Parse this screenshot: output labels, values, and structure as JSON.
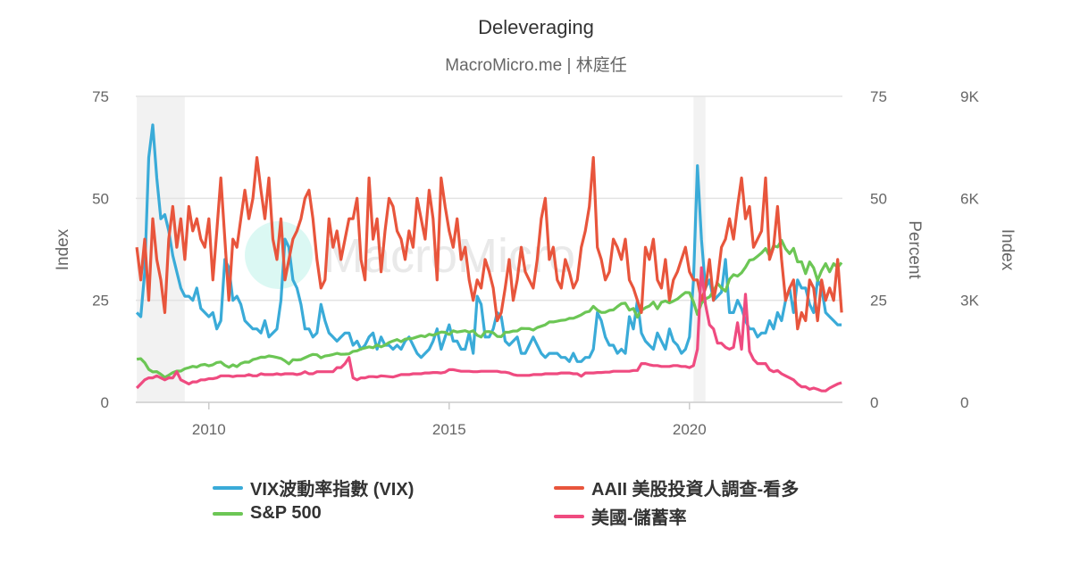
{
  "title": "Deleveraging",
  "subtitle": "MacroMicro.me | 林庭任",
  "watermark": "MacroMicro",
  "chart_data": {
    "type": "line",
    "x_ticks": [
      "2010",
      "2015",
      "2020"
    ],
    "x_range": [
      "2008-07",
      "2023-03"
    ],
    "recession_shading": [
      [
        "2008-07",
        "2009-06"
      ],
      [
        "2020-02",
        "2020-04"
      ]
    ],
    "grid": true,
    "legend": "bottom",
    "axes": {
      "left": {
        "title": "Index",
        "range": [
          0,
          75
        ],
        "ticks": [
          "0",
          "25",
          "50",
          "75"
        ]
      },
      "middle": {
        "title": "Percent",
        "range": [
          0,
          75
        ],
        "ticks": [
          "0",
          "25",
          "50",
          "75"
        ]
      },
      "right": {
        "title": "Index",
        "range": [
          0,
          9000
        ],
        "ticks": [
          "0",
          "3K",
          "6K",
          "9K"
        ]
      }
    },
    "start": "2008-07",
    "frequency": "monthly",
    "series": [
      {
        "name": "VIX波動率指數 (VIX)",
        "axis": "left",
        "color": "#3aabd8",
        "values": [
          22,
          21,
          32,
          60,
          68,
          55,
          45,
          46,
          42,
          36,
          32,
          28,
          26,
          26,
          25,
          28,
          23,
          22,
          21,
          22,
          18,
          20,
          35,
          33,
          25,
          26,
          24,
          20,
          19,
          18,
          18,
          17,
          20,
          16,
          17,
          18,
          25,
          40,
          38,
          30,
          28,
          24,
          18,
          18,
          16,
          17,
          24,
          20,
          17,
          16,
          15,
          16,
          17,
          17,
          14,
          15,
          13,
          14,
          16,
          17,
          13,
          16,
          14,
          14,
          13,
          14,
          13,
          15,
          16,
          14,
          12,
          11,
          12,
          13,
          15,
          18,
          13,
          16,
          19,
          15,
          15,
          13,
          13,
          17,
          12,
          26,
          24,
          16,
          16,
          18,
          22,
          21,
          15,
          14,
          15,
          16,
          12,
          12,
          14,
          16,
          14,
          12,
          11,
          12,
          12,
          12,
          11,
          11,
          10,
          12,
          10,
          10,
          11,
          11,
          13,
          22,
          20,
          16,
          14,
          14,
          12,
          13,
          12,
          21,
          18,
          25,
          17,
          15,
          14,
          13,
          17,
          15,
          13,
          18,
          15,
          14,
          12,
          13,
          16,
          30,
          58,
          40,
          28,
          30,
          25,
          26,
          27,
          35,
          22,
          22,
          25,
          23,
          20,
          18,
          18,
          16,
          17,
          17,
          20,
          18,
          22,
          20,
          25,
          28,
          22,
          30,
          28,
          28,
          24,
          22,
          30,
          28,
          22,
          21,
          20,
          19,
          19
        ]
      },
      {
        "name": "AAII 美股投資人調查-看多",
        "axis": "middle",
        "color": "#e8553c",
        "values": [
          38,
          30,
          40,
          25,
          45,
          35,
          30,
          22,
          40,
          48,
          38,
          45,
          35,
          48,
          42,
          45,
          40,
          38,
          45,
          30,
          42,
          55,
          40,
          25,
          40,
          38,
          45,
          52,
          45,
          50,
          60,
          52,
          45,
          55,
          40,
          35,
          45,
          30,
          35,
          40,
          42,
          45,
          50,
          52,
          45,
          35,
          28,
          30,
          45,
          38,
          42,
          35,
          40,
          45,
          45,
          50,
          35,
          30,
          55,
          40,
          45,
          32,
          42,
          50,
          48,
          42,
          40,
          35,
          42,
          38,
          50,
          45,
          40,
          52,
          45,
          30,
          55,
          48,
          42,
          38,
          45,
          35,
          38,
          30,
          25,
          30,
          28,
          35,
          32,
          28,
          20,
          22,
          28,
          35,
          25,
          30,
          38,
          32,
          30,
          28,
          35,
          45,
          50,
          35,
          38,
          30,
          28,
          35,
          32,
          28,
          30,
          38,
          42,
          48,
          60,
          38,
          35,
          30,
          32,
          40,
          38,
          35,
          40,
          30,
          28,
          25,
          22,
          38,
          35,
          40,
          30,
          28,
          35,
          25,
          30,
          32,
          35,
          38,
          32,
          30,
          30,
          25,
          28,
          35,
          25,
          30,
          38,
          40,
          45,
          40,
          48,
          55,
          45,
          48,
          38,
          40,
          42,
          55,
          35,
          38,
          48,
          35,
          25,
          28,
          30,
          18,
          22,
          20,
          30,
          28,
          20,
          30,
          25,
          28,
          25,
          35,
          22
        ]
      },
      {
        "name": "S&P 500",
        "axis": "right",
        "color": "#6cc655",
        "values": [
          1267,
          1283,
          1165,
          968,
          896,
          903,
          826,
          735,
          798,
          873,
          919,
          919,
          987,
          1021,
          1057,
          1036,
          1096,
          1115,
          1074,
          1104,
          1169,
          1187,
          1089,
          1031,
          1102,
          1049,
          1141,
          1183,
          1181,
          1258,
          1286,
          1327,
          1326,
          1364,
          1345,
          1321,
          1292,
          1219,
          1131,
          1253,
          1247,
          1258,
          1312,
          1366,
          1408,
          1398,
          1310,
          1362,
          1379,
          1407,
          1441,
          1412,
          1416,
          1426,
          1498,
          1515,
          1569,
          1598,
          1631,
          1606,
          1686,
          1633,
          1682,
          1757,
          1806,
          1848,
          1783,
          1859,
          1872,
          1884,
          1924,
          1960,
          1931,
          2003,
          1972,
          2018,
          2068,
          2059,
          1995,
          2105,
          2068,
          2086,
          2107,
          2063,
          2104,
          1972,
          1920,
          2079,
          2080,
          2044,
          1940,
          1932,
          2060,
          2065,
          2097,
          2099,
          2174,
          2171,
          2168,
          2126,
          2199,
          2239,
          2279,
          2364,
          2363,
          2384,
          2412,
          2423,
          2470,
          2472,
          2519,
          2575,
          2648,
          2674,
          2824,
          2714,
          2641,
          2648,
          2705,
          2718,
          2816,
          2902,
          2914,
          2712,
          2760,
          2507,
          2704,
          2784,
          2834,
          2946,
          2752,
          2942,
          2980,
          2926,
          2977,
          3038,
          3141,
          3231,
          3226,
          2954,
          2585,
          2912,
          3044,
          3100,
          3271,
          3500,
          3363,
          3270,
          3622,
          3756,
          3714,
          3811,
          3973,
          4181,
          4204,
          4298,
          4395,
          4523,
          4308,
          4605,
          4567,
          4766,
          4516,
          4374,
          4530,
          4132,
          4132,
          3785,
          4130,
          3955,
          3586,
          3872,
          4080,
          3840,
          4077,
          3970,
          4109
        ]
      },
      {
        "name": "美國-儲蓄率",
        "axis": "middle",
        "color": "#ef4b80",
        "values": [
          3.5,
          4.5,
          5.5,
          6,
          6,
          6.5,
          6,
          5.5,
          6,
          6,
          7.5,
          5.5,
          5,
          4.5,
          5,
          5,
          5.5,
          5.5,
          5.8,
          5.8,
          6,
          6.5,
          6.5,
          6.5,
          6.3,
          6.5,
          6.5,
          6.5,
          6.8,
          6.5,
          6.5,
          7,
          6.8,
          6.8,
          6.8,
          7,
          6.8,
          7,
          7,
          7,
          6.8,
          7,
          7.5,
          7,
          7,
          7.5,
          7.5,
          7.5,
          7.5,
          7.5,
          8.5,
          8.5,
          9.5,
          11,
          6,
          5.5,
          6,
          6,
          6.3,
          6.3,
          6.2,
          6.5,
          6.4,
          6.3,
          6.2,
          6.5,
          6.8,
          6.8,
          6.8,
          7,
          7,
          7,
          7.2,
          7.2,
          7.3,
          7.3,
          7.2,
          7.4,
          8,
          8,
          7.8,
          7.6,
          7.6,
          7.6,
          7.5,
          7.5,
          7.6,
          7.6,
          7.6,
          7.6,
          7.6,
          7.4,
          7.4,
          7.2,
          6.8,
          6.6,
          6.6,
          6.6,
          6.6,
          6.8,
          6.8,
          6.8,
          7,
          7,
          7,
          7,
          7.2,
          7.2,
          7.2,
          7,
          7,
          6.4,
          7.2,
          7.2,
          7.2,
          7.3,
          7.3,
          7.4,
          7.4,
          7.6,
          7.6,
          7.6,
          7.6,
          7.6,
          7.8,
          7.8,
          9.5,
          9.5,
          9.2,
          9,
          9,
          8.8,
          8.8,
          8.8,
          9,
          9,
          8.8,
          8.8,
          8.5,
          9,
          13,
          33,
          24,
          19,
          18,
          14.5,
          14.5,
          13.5,
          13,
          13.5,
          19.5,
          13,
          26.5,
          12.5,
          10.5,
          9.5,
          9.5,
          9.5,
          8,
          7.5,
          7.8,
          7,
          6.5,
          6,
          5.5,
          4.5,
          3.8,
          3.8,
          3.2,
          3.5,
          3.2,
          2.8,
          2.8,
          3.5,
          4,
          4.5,
          4.8
        ]
      }
    ]
  }
}
